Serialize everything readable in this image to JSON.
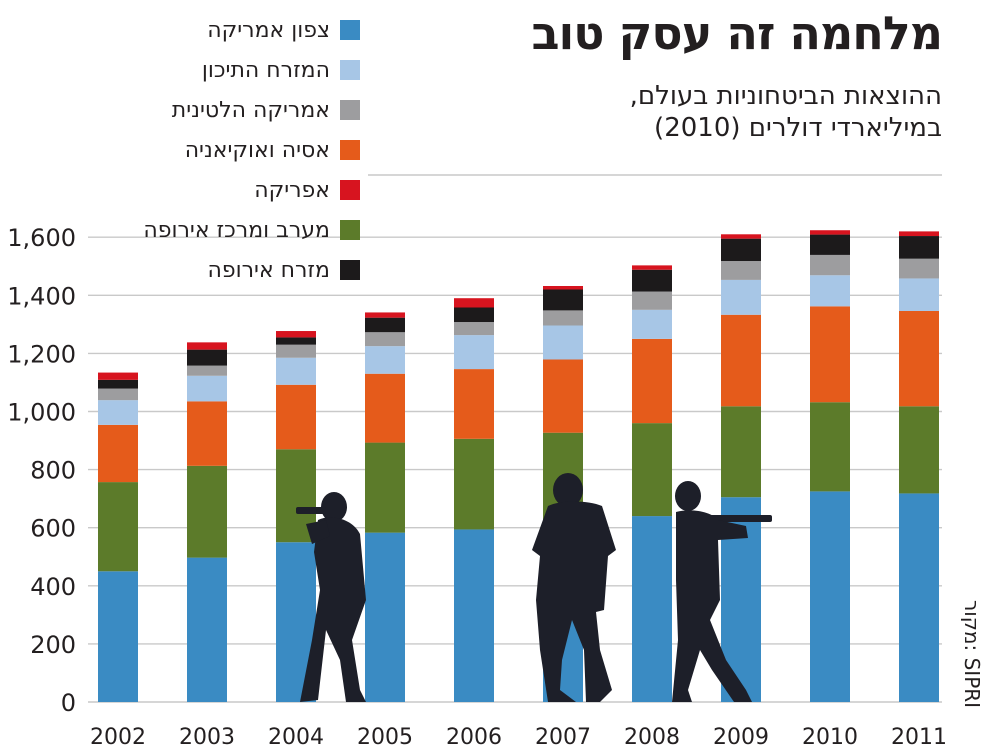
{
  "title": "מלחמה זה עסק טוב",
  "subtitle": {
    "line1": "ההוצאות הביטחוניות בעולם,",
    "line2": "במיליארדי דולרים (2010)"
  },
  "source": "מקור: SIPRI",
  "colors": {
    "north_america": "#3a8bc3",
    "middle_east": "#a7c6e6",
    "latin_america": "#9d9d9f",
    "asia_oceania": "#e55b1b",
    "africa": "#d7141f",
    "west_central_europe": "#5c7b2a",
    "east_europe": "#1c1a1b",
    "grid": "#c9c9c9",
    "silhouette": "#1d1f29"
  },
  "chart_data": {
    "type": "bar",
    "stacked": true,
    "categories": [
      "2002",
      "2003",
      "2004",
      "2005",
      "2006",
      "2007",
      "2008",
      "2009",
      "2010",
      "2011"
    ],
    "ylim": [
      0,
      1650
    ],
    "yticks": [
      0,
      200,
      400,
      600,
      800,
      1000,
      1200,
      1400,
      1600
    ],
    "ytick_labels": [
      "0",
      "200",
      "400",
      "600",
      "800",
      "1,000",
      "1,200",
      "1,400",
      "1,600"
    ],
    "grid": true,
    "legend_position": "top-left",
    "series": [
      {
        "name": "צפון אמריקה",
        "color_key": "north_america",
        "values": [
          450,
          497,
          550,
          583,
          594,
          610,
          640,
          705,
          725,
          718
        ]
      },
      {
        "name": "מערב ומרכז אירופה",
        "color_key": "west_central_europe",
        "values": [
          307,
          316,
          320,
          310,
          312,
          317,
          320,
          313,
          307,
          300
        ]
      },
      {
        "name": "אסיה ואוקיאניה",
        "color_key": "asia_oceania",
        "values": [
          197,
          222,
          222,
          237,
          240,
          252,
          290,
          315,
          330,
          328
        ]
      },
      {
        "name": "המזרח התיכון",
        "color_key": "middle_east",
        "values": [
          85,
          88,
          93,
          95,
          117,
          117,
          100,
          120,
          107,
          112
        ]
      },
      {
        "name": "אמריקה הלטינית",
        "color_key": "latin_america",
        "values": [
          40,
          35,
          45,
          48,
          45,
          52,
          63,
          65,
          70,
          68
        ]
      },
      {
        "name": "מזרח אירופה",
        "color_key": "east_europe",
        "values": [
          30,
          55,
          25,
          50,
          50,
          72,
          75,
          77,
          70,
          78
        ]
      },
      {
        "name": "אפריקה",
        "color_key": "africa",
        "values": [
          25,
          25,
          22,
          18,
          32,
          12,
          15,
          15,
          15,
          16
        ]
      }
    ]
  },
  "legend": [
    {
      "label": "צפון אמריקה",
      "color_key": "north_america"
    },
    {
      "label": "המזרח התיכון",
      "color_key": "middle_east"
    },
    {
      "label": "אמריקה הלטינית",
      "color_key": "latin_america"
    },
    {
      "label": "אסיה ואוקיאניה",
      "color_key": "asia_oceania"
    },
    {
      "label": "אפריקה",
      "color_key": "africa"
    },
    {
      "label": "מערב ומרכז אירופה",
      "color_key": "west_central_europe"
    },
    {
      "label": "מזרח אירופה",
      "color_key": "east_europe"
    }
  ],
  "decorations": {
    "silhouette_icon": "soldier-silhouette-icon"
  }
}
